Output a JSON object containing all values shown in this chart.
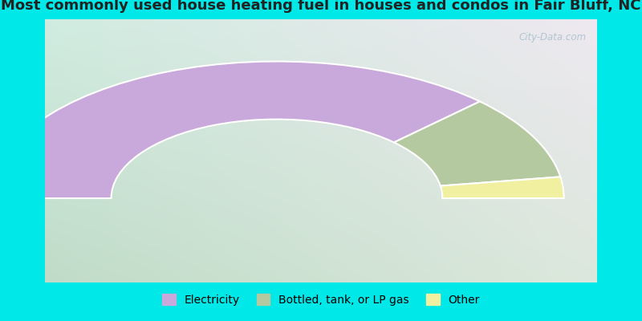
{
  "title": "Most commonly used house heating fuel in houses and condos in Fair Bluff, NC",
  "slices": [
    {
      "label": "Electricity",
      "value": 75,
      "color": "#c9a8dc"
    },
    {
      "label": "Bottled, tank, or LP gas",
      "value": 20,
      "color": "#b5c9a0"
    },
    {
      "label": "Other",
      "value": 5,
      "color": "#f0f0a0"
    }
  ],
  "title_color": "#222222",
  "title_fontsize": 13,
  "legend_fontsize": 10,
  "watermark": "City-Data.com",
  "border_color": "#00e8e8",
  "grad_top_left": "#d0ece0",
  "grad_top_right": "#eee8f0",
  "grad_bot_left": "#c0dcc8",
  "grad_bot_right": "#dce8dc"
}
